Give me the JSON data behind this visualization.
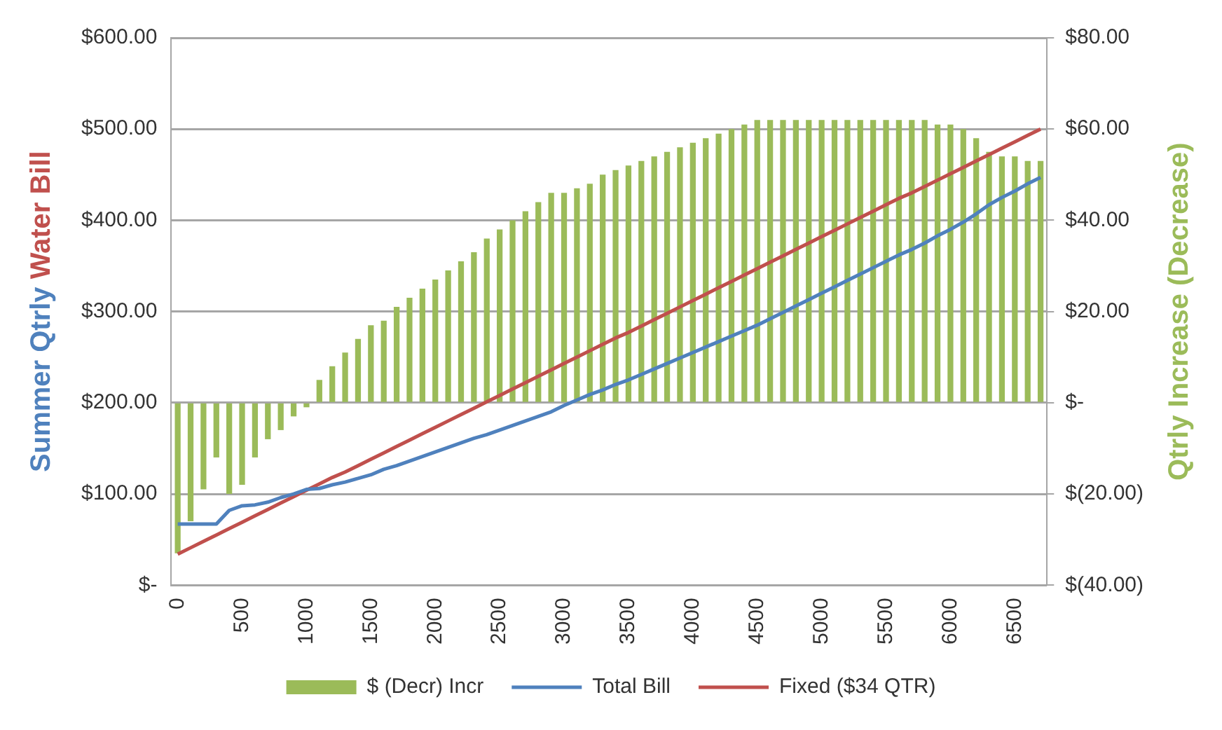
{
  "chart_data": {
    "type": "bar",
    "categories": [
      "0",
      null,
      null,
      null,
      null,
      "500",
      null,
      null,
      null,
      null,
      "1000",
      null,
      null,
      null,
      null,
      "1500",
      null,
      null,
      null,
      null,
      "2000",
      null,
      null,
      null,
      null,
      "2500",
      null,
      null,
      null,
      null,
      "3000",
      null,
      null,
      null,
      null,
      "3500",
      null,
      null,
      null,
      null,
      "4000",
      null,
      null,
      null,
      null,
      "4500",
      null,
      null,
      null,
      null,
      "5000",
      null,
      null,
      null,
      null,
      "5500",
      null,
      null,
      null,
      null,
      "6000",
      null,
      null,
      null,
      null,
      "6500",
      null,
      null
    ],
    "series": [
      {
        "name": "$ (Decr) Incr",
        "axis": "y2",
        "color": "#9bbb59",
        "values": [
          -33,
          -26,
          -19,
          -12,
          -20,
          -18,
          -12,
          -8,
          -6,
          -3,
          -1,
          5,
          8,
          11,
          14,
          17,
          18,
          21,
          23,
          25,
          27,
          29,
          31,
          33,
          36,
          38,
          40,
          42,
          44,
          46,
          46,
          47,
          48,
          50,
          51,
          52,
          53,
          54,
          55,
          56,
          57,
          58,
          59,
          60,
          61,
          62,
          62,
          62,
          62,
          62,
          62,
          62,
          62,
          62,
          62,
          62,
          62,
          62,
          62,
          61,
          61,
          60,
          58,
          55,
          54,
          54,
          53,
          53
        ]
      },
      {
        "name": "Total Bill",
        "type": "line",
        "color": "#4f81bd",
        "values": [
          67,
          67,
          67,
          67,
          82,
          87,
          88,
          91,
          96,
          100,
          105,
          106,
          110,
          113,
          117,
          121,
          127,
          131,
          136,
          141,
          146,
          151,
          156,
          161,
          165,
          170,
          175,
          180,
          185,
          190,
          197,
          203,
          209,
          214,
          220,
          225,
          231,
          237,
          243,
          249,
          255,
          261,
          267,
          273,
          279,
          285,
          292,
          299,
          306,
          313,
          320,
          327,
          334,
          341,
          348,
          355,
          362,
          368,
          375,
          383,
          390,
          398,
          407,
          417,
          425,
          432,
          440,
          447
        ]
      },
      {
        "name": "Fixed ($34 QTR)",
        "type": "line",
        "color": "#c0504d",
        "values": [
          34,
          41,
          48,
          55,
          62,
          69,
          76,
          83,
          90,
          97,
          104,
          111,
          118,
          124,
          131,
          138,
          145,
          152,
          159,
          166,
          173,
          180,
          187,
          194,
          201,
          208,
          215,
          222,
          229,
          236,
          243,
          250,
          257,
          264,
          271,
          277,
          284,
          291,
          298,
          305,
          312,
          319,
          326,
          333,
          340,
          347,
          354,
          361,
          368,
          375,
          382,
          389,
          396,
          403,
          410,
          417,
          424,
          430,
          437,
          444,
          451,
          458,
          465,
          472,
          479,
          486,
          493,
          500
        ]
      }
    ],
    "ylabel": "Summer Qtrly Water Bill",
    "y2label": "Qtrly Increase (Decrease)",
    "ylim": [
      0,
      600
    ],
    "yticks": [
      {
        "value": 0,
        "label": "$-"
      },
      {
        "value": 100,
        "label": "$100.00"
      },
      {
        "value": 200,
        "label": "$200.00"
      },
      {
        "value": 300,
        "label": "$300.00"
      },
      {
        "value": 400,
        "label": "$400.00"
      },
      {
        "value": 500,
        "label": "$500.00"
      },
      {
        "value": 600,
        "label": "$600.00"
      }
    ],
    "y2lim": [
      -40,
      80
    ],
    "y2ticks": [
      {
        "value": -40,
        "label": "$(40.00)"
      },
      {
        "value": -20,
        "label": "$(20.00)"
      },
      {
        "value": 0,
        "label": "$-"
      },
      {
        "value": 20,
        "label": "$20.00"
      },
      {
        "value": 40,
        "label": "$40.00"
      },
      {
        "value": 60,
        "label": "$60.00"
      },
      {
        "value": 80,
        "label": "$80.00"
      }
    ],
    "grid": "y",
    "legend": "bottom",
    "marker": "none"
  }
}
